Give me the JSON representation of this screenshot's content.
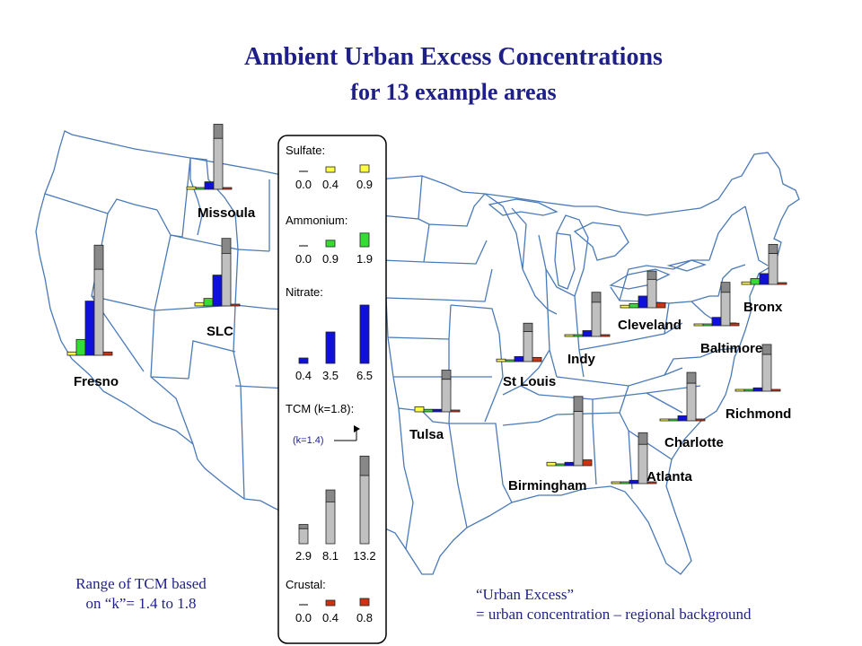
{
  "title_line1": "Ambient Urban Excess Concentrations",
  "title_line2": "for 13 example areas",
  "note_left_line1": "Range of TCM based",
  "note_left_line2": "on “k”= 1.4 to 1.8",
  "note_right_line1": "“Urban Excess”",
  "note_right_line2": "= urban concentration – regional background",
  "colors": {
    "sulfate": "#ffff40",
    "ammonium": "#33dd33",
    "nitrate": "#1010dd",
    "tcm": "#c0c0c0",
    "tcm_extra": "#888888",
    "crustal": "#cc3311",
    "map_lines": "#4a7ab8",
    "title": "#1f1f8a"
  },
  "legend": {
    "sections": [
      {
        "label": "Sulfate:",
        "key": "sulfate",
        "ticks": [
          "0.0",
          "0.4",
          "0.9"
        ],
        "values": [
          0.0,
          0.4,
          0.9
        ]
      },
      {
        "label": "Ammonium:",
        "key": "ammonium",
        "ticks": [
          "0.0",
          "0.9",
          "1.9"
        ],
        "values": [
          0.0,
          0.9,
          1.9
        ]
      },
      {
        "label": "Nitrate:",
        "key": "nitrate",
        "ticks": [
          "0.4",
          "3.5",
          "6.5"
        ],
        "values": [
          0.4,
          3.5,
          6.5
        ]
      },
      {
        "label": "TCM (k=1.8):",
        "key": "tcm",
        "ticks": [
          "2.9",
          "8.1",
          "13.2"
        ],
        "values": [
          2.9,
          8.1,
          13.2
        ]
      },
      {
        "label": "Crustal:",
        "key": "crustal",
        "ticks": [
          "0.0",
          "0.4",
          "0.8"
        ],
        "values": [
          0.0,
          0.4,
          0.8
        ]
      }
    ],
    "tcm_k14_label": "(k=1.4)"
  },
  "chart_data": {
    "type": "bar",
    "series_order": [
      "Sulfate",
      "Ammonium",
      "Nitrate",
      "TCM (k=1.8)",
      "Crustal"
    ],
    "cities": [
      {
        "name": "Fresno",
        "values": [
          0.4,
          1.9,
          6.5,
          13.2,
          0.4
        ],
        "tcm_k14": 10.3
      },
      {
        "name": "Missoula",
        "values": [
          0.3,
          0.0,
          0.9,
          7.8,
          0.0
        ],
        "tcm_k14": 6.1
      },
      {
        "name": "SLC",
        "values": [
          0.4,
          0.9,
          3.7,
          8.1,
          0.2
        ],
        "tcm_k14": 6.3
      },
      {
        "name": "Tulsa",
        "values": [
          0.6,
          0.3,
          0.3,
          5.0,
          0.1
        ],
        "tcm_k14": 3.9
      },
      {
        "name": "St Louis",
        "values": [
          0.3,
          0.0,
          0.6,
          4.6,
          0.5
        ],
        "tcm_k14": 3.6
      },
      {
        "name": "Indy",
        "values": [
          0.1,
          0.0,
          0.7,
          5.3,
          0.0
        ],
        "tcm_k14": 4.1
      },
      {
        "name": "Cleveland",
        "values": [
          0.3,
          0.5,
          1.4,
          4.4,
          0.6
        ],
        "tcm_k14": 3.4
      },
      {
        "name": "Bronx",
        "values": [
          0.3,
          0.7,
          1.3,
          4.8,
          0.0
        ],
        "tcm_k14": 3.7
      },
      {
        "name": "Baltimore",
        "values": [
          0.2,
          0.0,
          1.0,
          5.2,
          0.3
        ],
        "tcm_k14": 4.0
      },
      {
        "name": "Richmond",
        "values": [
          0.0,
          0.0,
          0.4,
          5.6,
          0.0
        ],
        "tcm_k14": 4.4
      },
      {
        "name": "Charlotte",
        "values": [
          0.2,
          0.0,
          0.6,
          5.8,
          0.2
        ],
        "tcm_k14": 4.5
      },
      {
        "name": "Birmingham",
        "values": [
          0.4,
          0.0,
          0.4,
          8.3,
          0.7
        ],
        "tcm_k14": 6.5
      },
      {
        "name": "Atlanta",
        "values": [
          0.0,
          0.0,
          0.4,
          6.1,
          0.0
        ],
        "tcm_k14": 4.7
      }
    ]
  }
}
